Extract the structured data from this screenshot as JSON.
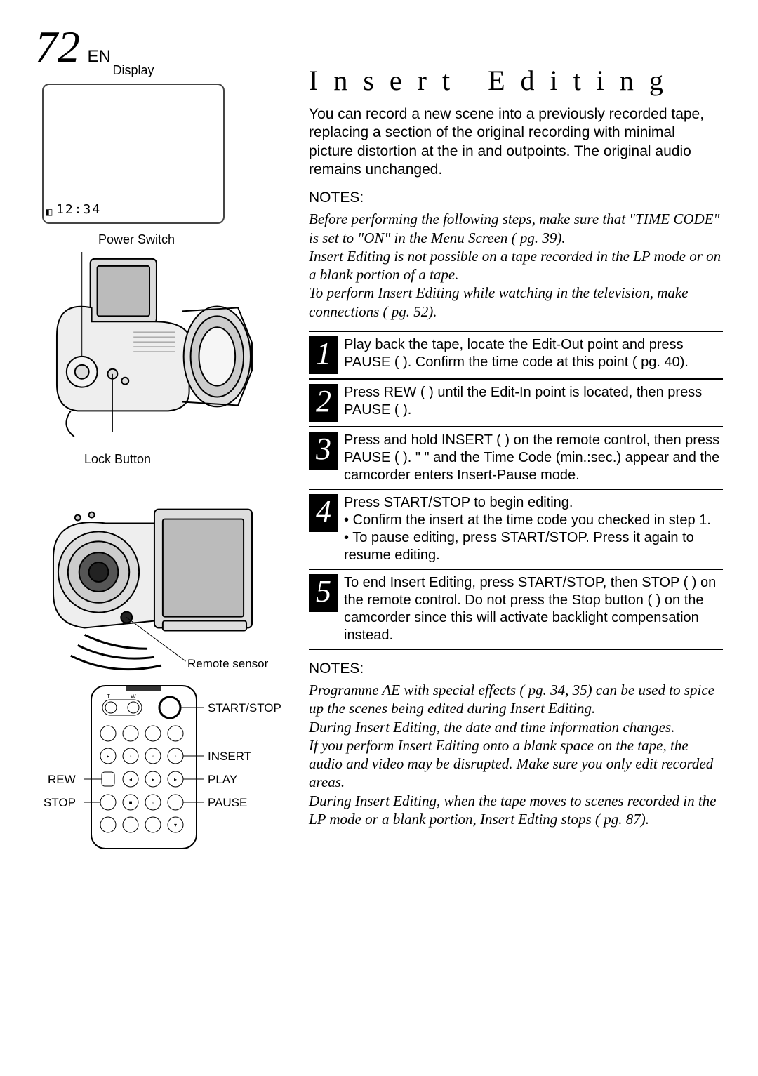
{
  "page": {
    "number": "72",
    "lang": "EN"
  },
  "left": {
    "display_label": "Display",
    "display_timecode": "12:34",
    "power_switch_label": "Power Switch",
    "lock_button_label": "Lock Button",
    "remote_sensor_label": "Remote sensor",
    "remote_labels": {
      "start_stop": "START/STOP",
      "insert": "INSERT",
      "play": "PLAY",
      "pause": "PAUSE",
      "rew": "REW",
      "stop": "STOP"
    }
  },
  "right": {
    "title": "Insert Editing",
    "intro": "You can record a new scene into a previously recorded tape, replacing a section of the original recording with minimal picture distortion at the in and outpoints. The original audio remains unchanged.",
    "notes_heading": "NOTES:",
    "notes_before": "Before performing the following steps, make sure that \"TIME CODE\" is set to \"ON\" in the Menu Screen (  pg. 39).\nInsert Editing is not possible on a tape recorded in the LP mode or on a blank portion of a tape.\nTo perform Insert Editing while watching in the television, make connections (  pg. 52).",
    "steps": [
      {
        "n": "1",
        "body": "Play back the tape, locate the Edit-Out point and press PAUSE (  ). Confirm the time code at this point (  pg. 40)."
      },
      {
        "n": "2",
        "body": "Press REW (  ) until the Edit-In point is located, then press PAUSE (  )."
      },
      {
        "n": "3",
        "body": "Press and hold INSERT (  ) on the remote control, then press PAUSE (  ). \"  \" and the Time Code (min.:sec.) appear and the camcorder enters Insert-Pause mode."
      },
      {
        "n": "4",
        "body": "Press START/STOP to begin editing.",
        "bullets": [
          "Confirm the insert at the time code you checked in step 1.",
          "To pause editing, press START/STOP. Press it again to resume editing."
        ]
      },
      {
        "n": "5",
        "body": "To end Insert Editing, press START/STOP, then STOP (  ) on the remote control.  Do not press the Stop button (  ) on the camcorder since this will activate backlight compensation instead."
      }
    ],
    "notes_after": "Programme AE with special effects (  pg. 34, 35) can be used to spice up the scenes being edited during Insert Editing.\nDuring Insert Editing, the date and time information changes.\nIf you perform Insert Editing onto a blank space on the tape, the audio and video may be disrupted. Make sure you only edit recorded areas.\nDuring Insert Editing, when the tape moves to scenes recorded in the LP mode or a blank portion, Insert Edting stops (  pg. 87)."
  },
  "colors": {
    "text": "#000000",
    "bg": "#ffffff",
    "stepbox": "#000000"
  },
  "fonts": {
    "body_size": 21,
    "title_size": 40,
    "stepnum_size": 44
  }
}
